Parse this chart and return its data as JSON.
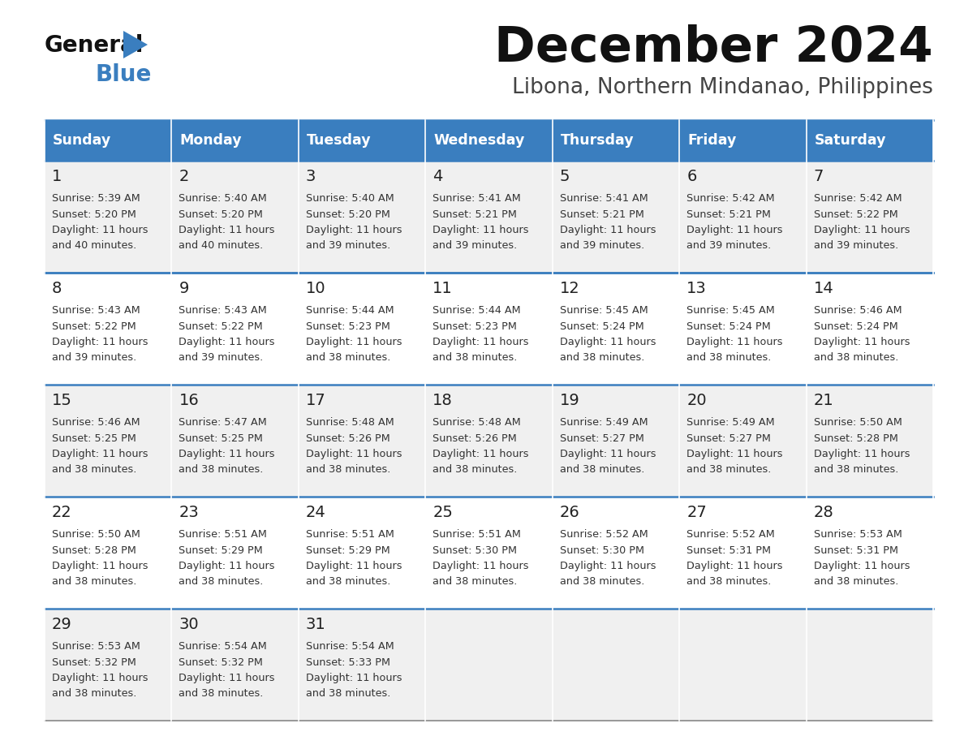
{
  "title": "December 2024",
  "subtitle": "Libona, Northern Mindanao, Philippines",
  "days_of_week": [
    "Sunday",
    "Monday",
    "Tuesday",
    "Wednesday",
    "Thursday",
    "Friday",
    "Saturday"
  ],
  "header_bg": "#3a7ebf",
  "header_text": "#ffffff",
  "row_bg_odd": "#f0f0f0",
  "row_bg_even": "#ffffff",
  "border_color": "#3a7ebf",
  "day_num_color": "#222222",
  "cell_text_color": "#333333",
  "calendar_data": [
    [
      {
        "day": "1",
        "sunrise": "5:39 AM",
        "sunset": "5:20 PM",
        "dl1": "Daylight: 11 hours",
        "dl2": "and 40 minutes."
      },
      {
        "day": "2",
        "sunrise": "5:40 AM",
        "sunset": "5:20 PM",
        "dl1": "Daylight: 11 hours",
        "dl2": "and 40 minutes."
      },
      {
        "day": "3",
        "sunrise": "5:40 AM",
        "sunset": "5:20 PM",
        "dl1": "Daylight: 11 hours",
        "dl2": "and 39 minutes."
      },
      {
        "day": "4",
        "sunrise": "5:41 AM",
        "sunset": "5:21 PM",
        "dl1": "Daylight: 11 hours",
        "dl2": "and 39 minutes."
      },
      {
        "day": "5",
        "sunrise": "5:41 AM",
        "sunset": "5:21 PM",
        "dl1": "Daylight: 11 hours",
        "dl2": "and 39 minutes."
      },
      {
        "day": "6",
        "sunrise": "5:42 AM",
        "sunset": "5:21 PM",
        "dl1": "Daylight: 11 hours",
        "dl2": "and 39 minutes."
      },
      {
        "day": "7",
        "sunrise": "5:42 AM",
        "sunset": "5:22 PM",
        "dl1": "Daylight: 11 hours",
        "dl2": "and 39 minutes."
      }
    ],
    [
      {
        "day": "8",
        "sunrise": "5:43 AM",
        "sunset": "5:22 PM",
        "dl1": "Daylight: 11 hours",
        "dl2": "and 39 minutes."
      },
      {
        "day": "9",
        "sunrise": "5:43 AM",
        "sunset": "5:22 PM",
        "dl1": "Daylight: 11 hours",
        "dl2": "and 39 minutes."
      },
      {
        "day": "10",
        "sunrise": "5:44 AM",
        "sunset": "5:23 PM",
        "dl1": "Daylight: 11 hours",
        "dl2": "and 38 minutes."
      },
      {
        "day": "11",
        "sunrise": "5:44 AM",
        "sunset": "5:23 PM",
        "dl1": "Daylight: 11 hours",
        "dl2": "and 38 minutes."
      },
      {
        "day": "12",
        "sunrise": "5:45 AM",
        "sunset": "5:24 PM",
        "dl1": "Daylight: 11 hours",
        "dl2": "and 38 minutes."
      },
      {
        "day": "13",
        "sunrise": "5:45 AM",
        "sunset": "5:24 PM",
        "dl1": "Daylight: 11 hours",
        "dl2": "and 38 minutes."
      },
      {
        "day": "14",
        "sunrise": "5:46 AM",
        "sunset": "5:24 PM",
        "dl1": "Daylight: 11 hours",
        "dl2": "and 38 minutes."
      }
    ],
    [
      {
        "day": "15",
        "sunrise": "5:46 AM",
        "sunset": "5:25 PM",
        "dl1": "Daylight: 11 hours",
        "dl2": "and 38 minutes."
      },
      {
        "day": "16",
        "sunrise": "5:47 AM",
        "sunset": "5:25 PM",
        "dl1": "Daylight: 11 hours",
        "dl2": "and 38 minutes."
      },
      {
        "day": "17",
        "sunrise": "5:48 AM",
        "sunset": "5:26 PM",
        "dl1": "Daylight: 11 hours",
        "dl2": "and 38 minutes."
      },
      {
        "day": "18",
        "sunrise": "5:48 AM",
        "sunset": "5:26 PM",
        "dl1": "Daylight: 11 hours",
        "dl2": "and 38 minutes."
      },
      {
        "day": "19",
        "sunrise": "5:49 AM",
        "sunset": "5:27 PM",
        "dl1": "Daylight: 11 hours",
        "dl2": "and 38 minutes."
      },
      {
        "day": "20",
        "sunrise": "5:49 AM",
        "sunset": "5:27 PM",
        "dl1": "Daylight: 11 hours",
        "dl2": "and 38 minutes."
      },
      {
        "day": "21",
        "sunrise": "5:50 AM",
        "sunset": "5:28 PM",
        "dl1": "Daylight: 11 hours",
        "dl2": "and 38 minutes."
      }
    ],
    [
      {
        "day": "22",
        "sunrise": "5:50 AM",
        "sunset": "5:28 PM",
        "dl1": "Daylight: 11 hours",
        "dl2": "and 38 minutes."
      },
      {
        "day": "23",
        "sunrise": "5:51 AM",
        "sunset": "5:29 PM",
        "dl1": "Daylight: 11 hours",
        "dl2": "and 38 minutes."
      },
      {
        "day": "24",
        "sunrise": "5:51 AM",
        "sunset": "5:29 PM",
        "dl1": "Daylight: 11 hours",
        "dl2": "and 38 minutes."
      },
      {
        "day": "25",
        "sunrise": "5:51 AM",
        "sunset": "5:30 PM",
        "dl1": "Daylight: 11 hours",
        "dl2": "and 38 minutes."
      },
      {
        "day": "26",
        "sunrise": "5:52 AM",
        "sunset": "5:30 PM",
        "dl1": "Daylight: 11 hours",
        "dl2": "and 38 minutes."
      },
      {
        "day": "27",
        "sunrise": "5:52 AM",
        "sunset": "5:31 PM",
        "dl1": "Daylight: 11 hours",
        "dl2": "and 38 minutes."
      },
      {
        "day": "28",
        "sunrise": "5:53 AM",
        "sunset": "5:31 PM",
        "dl1": "Daylight: 11 hours",
        "dl2": "and 38 minutes."
      }
    ],
    [
      {
        "day": "29",
        "sunrise": "5:53 AM",
        "sunset": "5:32 PM",
        "dl1": "Daylight: 11 hours",
        "dl2": "and 38 minutes."
      },
      {
        "day": "30",
        "sunrise": "5:54 AM",
        "sunset": "5:32 PM",
        "dl1": "Daylight: 11 hours",
        "dl2": "and 38 minutes."
      },
      {
        "day": "31",
        "sunrise": "5:54 AM",
        "sunset": "5:33 PM",
        "dl1": "Daylight: 11 hours",
        "dl2": "and 38 minutes."
      },
      null,
      null,
      null,
      null
    ]
  ]
}
